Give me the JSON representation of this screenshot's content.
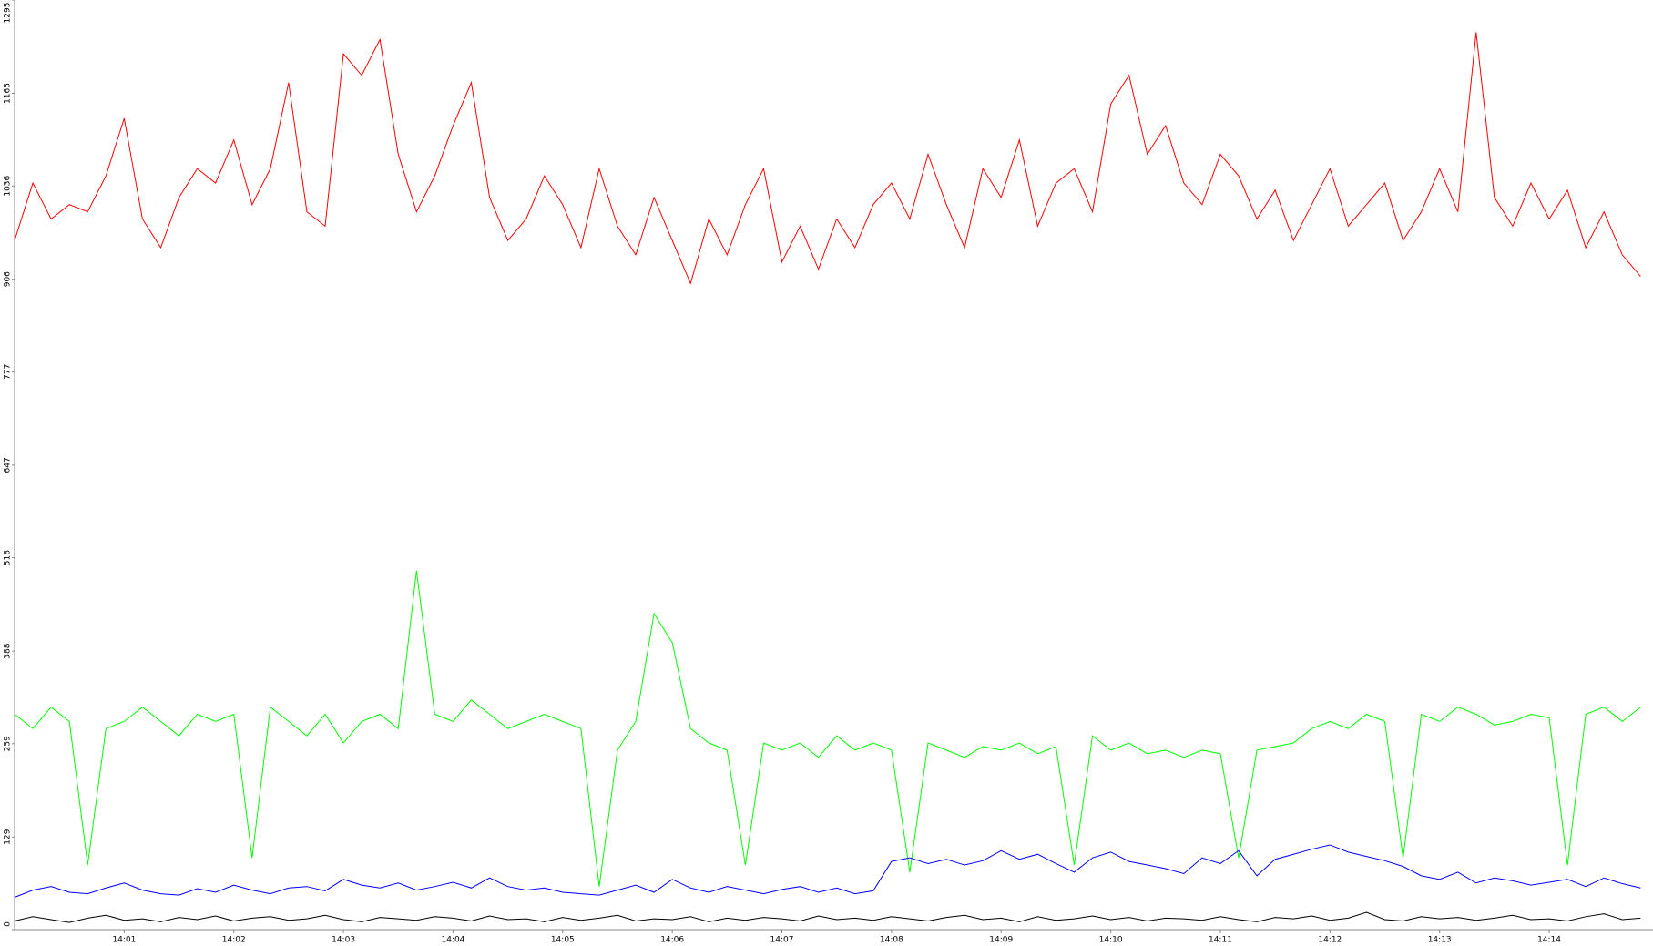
{
  "chart_data": {
    "type": "line",
    "categories": [
      null,
      null,
      null,
      null,
      null,
      null,
      "14:01",
      null,
      null,
      null,
      null,
      null,
      "14:02",
      null,
      null,
      null,
      null,
      null,
      "14:03",
      null,
      null,
      null,
      null,
      null,
      "14:04",
      null,
      null,
      null,
      null,
      null,
      "14:05",
      null,
      null,
      null,
      null,
      null,
      "14:06",
      null,
      null,
      null,
      null,
      null,
      "14:07",
      null,
      null,
      null,
      null,
      null,
      "14:08",
      null,
      null,
      null,
      null,
      null,
      "14:09",
      null,
      null,
      null,
      null,
      null,
      "14:10",
      null,
      null,
      null,
      null,
      null,
      "14:11",
      null,
      null,
      null,
      null,
      null,
      "14:12",
      null,
      null,
      null,
      null,
      null,
      "14:13",
      null,
      null,
      null,
      null,
      null,
      "14:14",
      null,
      null,
      null,
      null,
      null
    ],
    "series": [
      {
        "color": "#ff0000",
        "values": [
          960,
          1040,
          990,
          1010,
          1000,
          1050,
          1130,
          990,
          950,
          1020,
          1060,
          1040,
          1100,
          1010,
          1060,
          1180,
          1000,
          980,
          1220,
          1190,
          1240,
          1080,
          1000,
          1050,
          1120,
          1180,
          1020,
          960,
          990,
          1050,
          1010,
          950,
          1060,
          980,
          940,
          1020,
          960,
          900,
          990,
          940,
          1010,
          1060,
          930,
          980,
          920,
          990,
          950,
          1010,
          1040,
          990,
          1080,
          1010,
          950,
          1060,
          1020,
          1100,
          980,
          1040,
          1060,
          1000,
          1150,
          1190,
          1080,
          1120,
          1040,
          1010,
          1080,
          1050,
          990,
          1030,
          960,
          1010,
          1060,
          980,
          1010,
          1040,
          960,
          1000,
          1060,
          1000,
          1250,
          1020,
          980,
          1040,
          990,
          1030,
          950,
          1000,
          940,
          910
        ]
      },
      {
        "color": "#00ff00",
        "values": [
          300,
          280,
          310,
          290,
          90,
          280,
          290,
          310,
          290,
          270,
          300,
          290,
          300,
          100,
          310,
          290,
          270,
          300,
          260,
          290,
          300,
          280,
          500,
          300,
          290,
          320,
          300,
          280,
          290,
          300,
          290,
          280,
          60,
          250,
          290,
          440,
          400,
          280,
          260,
          250,
          90,
          260,
          250,
          260,
          240,
          270,
          250,
          260,
          250,
          80,
          260,
          250,
          240,
          255,
          250,
          260,
          245,
          255,
          90,
          270,
          250,
          260,
          245,
          250,
          240,
          250,
          245,
          100,
          250,
          255,
          260,
          280,
          290,
          280,
          300,
          290,
          100,
          300,
          290,
          310,
          300,
          285,
          290,
          300,
          295,
          90,
          300,
          310,
          290,
          310
        ]
      },
      {
        "color": "#0000ff",
        "values": [
          45,
          55,
          60,
          52,
          50,
          58,
          65,
          55,
          50,
          48,
          57,
          52,
          62,
          55,
          50,
          58,
          60,
          54,
          70,
          62,
          58,
          65,
          55,
          60,
          66,
          58,
          72,
          60,
          55,
          58,
          52,
          50,
          48,
          55,
          62,
          52,
          70,
          58,
          52,
          60,
          55,
          50,
          56,
          60,
          52,
          58,
          50,
          54,
          95,
          100,
          92,
          98,
          90,
          96,
          110,
          98,
          105,
          92,
          80,
          100,
          108,
          95,
          90,
          85,
          78,
          100,
          92,
          110,
          75,
          98,
          105,
          112,
          118,
          108,
          102,
          96,
          88,
          75,
          70,
          80,
          65,
          72,
          68,
          62,
          66,
          70,
          60,
          72,
          64,
          58
        ]
      },
      {
        "color": "#000000",
        "values": [
          12,
          18,
          14,
          10,
          16,
          20,
          13,
          15,
          11,
          17,
          14,
          19,
          12,
          16,
          18,
          13,
          15,
          20,
          14,
          11,
          17,
          15,
          13,
          18,
          16,
          12,
          19,
          14,
          15,
          11,
          17,
          13,
          16,
          20,
          12,
          15,
          14,
          18,
          11,
          16,
          13,
          17,
          15,
          12,
          19,
          14,
          16,
          13,
          18,
          15,
          12,
          17,
          20,
          14,
          16,
          11,
          18,
          13,
          15,
          19,
          14,
          17,
          12,
          16,
          15,
          13,
          18,
          14,
          11,
          17,
          15,
          19,
          13,
          16,
          24,
          14,
          12,
          18,
          15,
          17,
          13,
          16,
          20,
          14,
          15,
          12,
          18,
          22,
          14,
          16
        ]
      }
    ],
    "ylim": [
      0,
      1295
    ],
    "yticks": [
      0,
      129,
      259,
      388,
      518,
      647,
      777,
      906,
      1036,
      1165,
      1295
    ],
    "grid": false
  }
}
